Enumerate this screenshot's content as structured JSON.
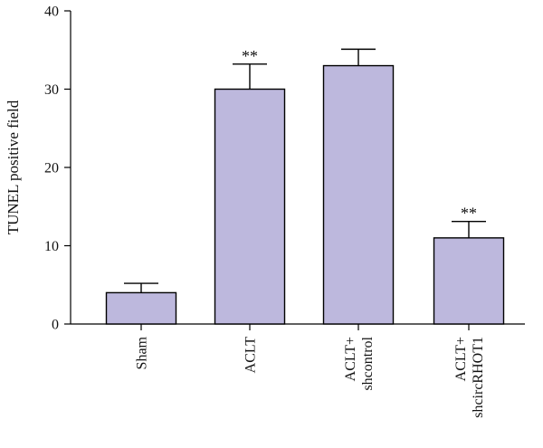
{
  "chart_data": {
    "type": "bar",
    "categories": [
      "Sham",
      "ACLT",
      "ACLT+\nshcontrol",
      "ACLT+\nshcircRHOT1"
    ],
    "values": [
      4,
      30,
      33,
      11
    ],
    "errors": [
      1.2,
      3.2,
      2.1,
      2.1
    ],
    "significance": [
      "",
      "**",
      "",
      "**"
    ],
    "title": "",
    "xlabel": "",
    "ylabel": "TUNEL positive field",
    "ylim": [
      0,
      40
    ],
    "yticks": [
      0,
      10,
      20,
      30,
      40
    ],
    "bar_color": "#bdb8dd",
    "grid": false,
    "legend": "none"
  }
}
